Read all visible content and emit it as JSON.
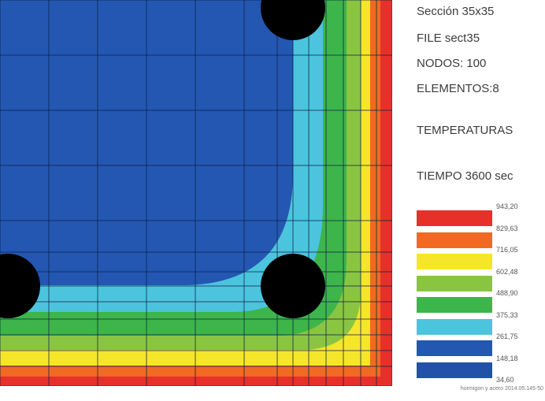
{
  "info": {
    "section": "Sección 35x35",
    "file": "FILE sect35",
    "nodes": "NODOS: 100",
    "elements": "ELEMENTOS:8",
    "result": "TEMPERATURAS",
    "time": "TIEMPO 3600 sec"
  },
  "legend": {
    "values": [
      "943,20",
      "829,63",
      "716,05",
      "602,48",
      "488,90",
      "375,33",
      "261,75",
      "148,18",
      "34,60"
    ],
    "colors": [
      "#e8302a",
      "#f06a23",
      "#f5e62a",
      "#8ac542",
      "#3db54a",
      "#4cc4dd",
      "#2357b2",
      "#2152a8"
    ]
  },
  "credit": "hormigon y acero 2014.05.145-50",
  "contour_colors": {
    "background": "#1e4fa6",
    "level_1": "#2357b2",
    "level_2": "#4cc4dd",
    "level_3": "#3db54a",
    "level_4": "#8ac542",
    "level_5": "#f5e62a",
    "level_6": "#f06a23",
    "level_7": "#e8302a",
    "rebar": "#000000",
    "mesh": "#0b1d45"
  }
}
